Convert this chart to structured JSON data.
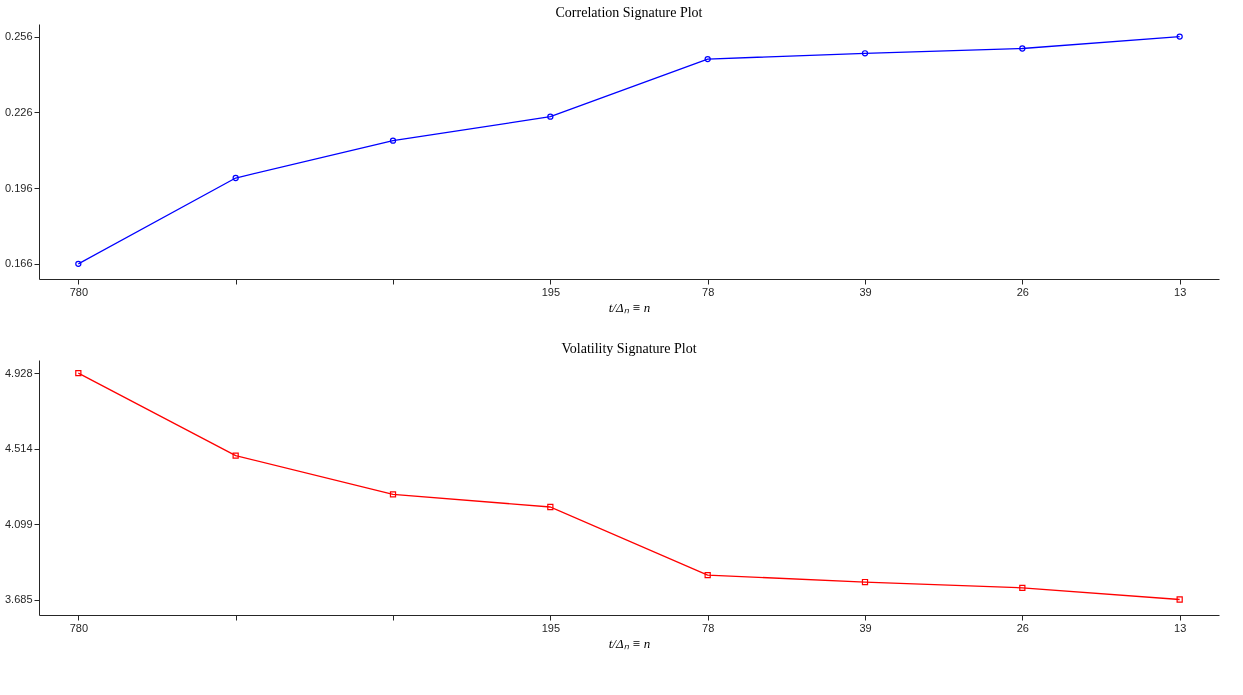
{
  "chart_data": [
    {
      "type": "line",
      "title": "Correlation Signature Plot",
      "xlabel": "t/Δₙ ≡ n",
      "categories": [
        "780",
        null,
        null,
        "195",
        "78",
        "39",
        "26",
        "13"
      ],
      "series": [
        {
          "color": "#0000ff",
          "values": [
            0.166,
            0.2,
            0.2148,
            0.2243,
            0.2471,
            0.2494,
            0.2513,
            0.256
          ]
        }
      ],
      "marker": "circle",
      "ylim": [
        0.16,
        0.261
      ],
      "yticks": [
        0.166,
        0.196,
        0.226,
        0.256
      ],
      "grid": false
    },
    {
      "type": "line",
      "title": "Volatility Signature Plot",
      "xlabel": "t/Δₙ ≡ n",
      "categories": [
        "780",
        null,
        null,
        "195",
        "78",
        "39",
        "26",
        "13"
      ],
      "series": [
        {
          "color": "#ff0000",
          "values": [
            4.928,
            4.475,
            4.262,
            4.193,
            3.819,
            3.781,
            3.749,
            3.685
          ]
        }
      ],
      "marker": "square",
      "ylim": [
        3.6,
        5.0
      ],
      "yticks": [
        4.928,
        4.514,
        4.099,
        3.685
      ],
      "grid": false
    }
  ]
}
